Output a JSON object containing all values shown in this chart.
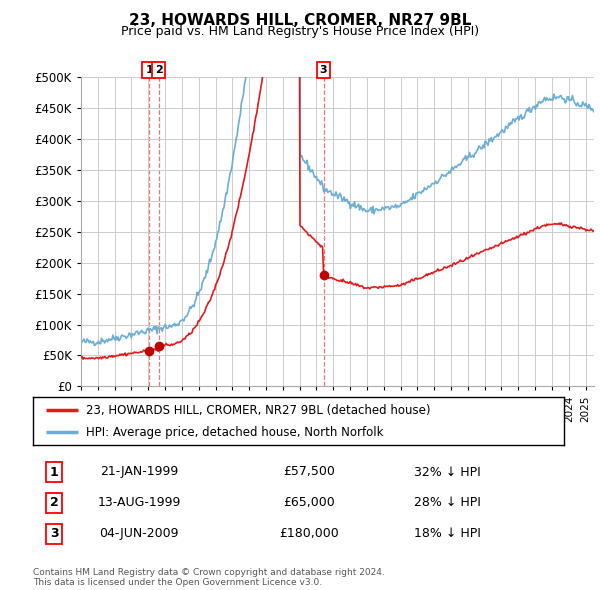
{
  "title": "23, HOWARDS HILL, CROMER, NR27 9BL",
  "subtitle": "Price paid vs. HM Land Registry's House Price Index (HPI)",
  "ylim": [
    0,
    500000
  ],
  "yticks": [
    0,
    50000,
    100000,
    150000,
    200000,
    250000,
    300000,
    350000,
    400000,
    450000,
    500000
  ],
  "hpi_color": "#6baed6",
  "sale_color": "#e31a1c",
  "sale_marker_color": "#c00000",
  "background_color": "#ffffff",
  "grid_color": "#cccccc",
  "transactions": [
    {
      "label": "1",
      "date_num": 1999.05,
      "price": 57500
    },
    {
      "label": "2",
      "date_num": 1999.62,
      "price": 65000
    },
    {
      "label": "3",
      "date_num": 2009.42,
      "price": 180000
    }
  ],
  "table_rows": [
    {
      "num": "1",
      "date": "21-JAN-1999",
      "price": "£57,500",
      "pct": "32% ↓ HPI"
    },
    {
      "num": "2",
      "date": "13-AUG-1999",
      "price": "£65,000",
      "pct": "28% ↓ HPI"
    },
    {
      "num": "3",
      "date": "04-JUN-2009",
      "price": "£180,000",
      "pct": "18% ↓ HPI"
    }
  ],
  "legend_line1": "23, HOWARDS HILL, CROMER, NR27 9BL (detached house)",
  "legend_line2": "HPI: Average price, detached house, North Norfolk",
  "footnote": "Contains HM Land Registry data © Crown copyright and database right 2024.\nThis data is licensed under the Open Government Licence v3.0.",
  "xmin": 1995,
  "xmax": 2025.5
}
